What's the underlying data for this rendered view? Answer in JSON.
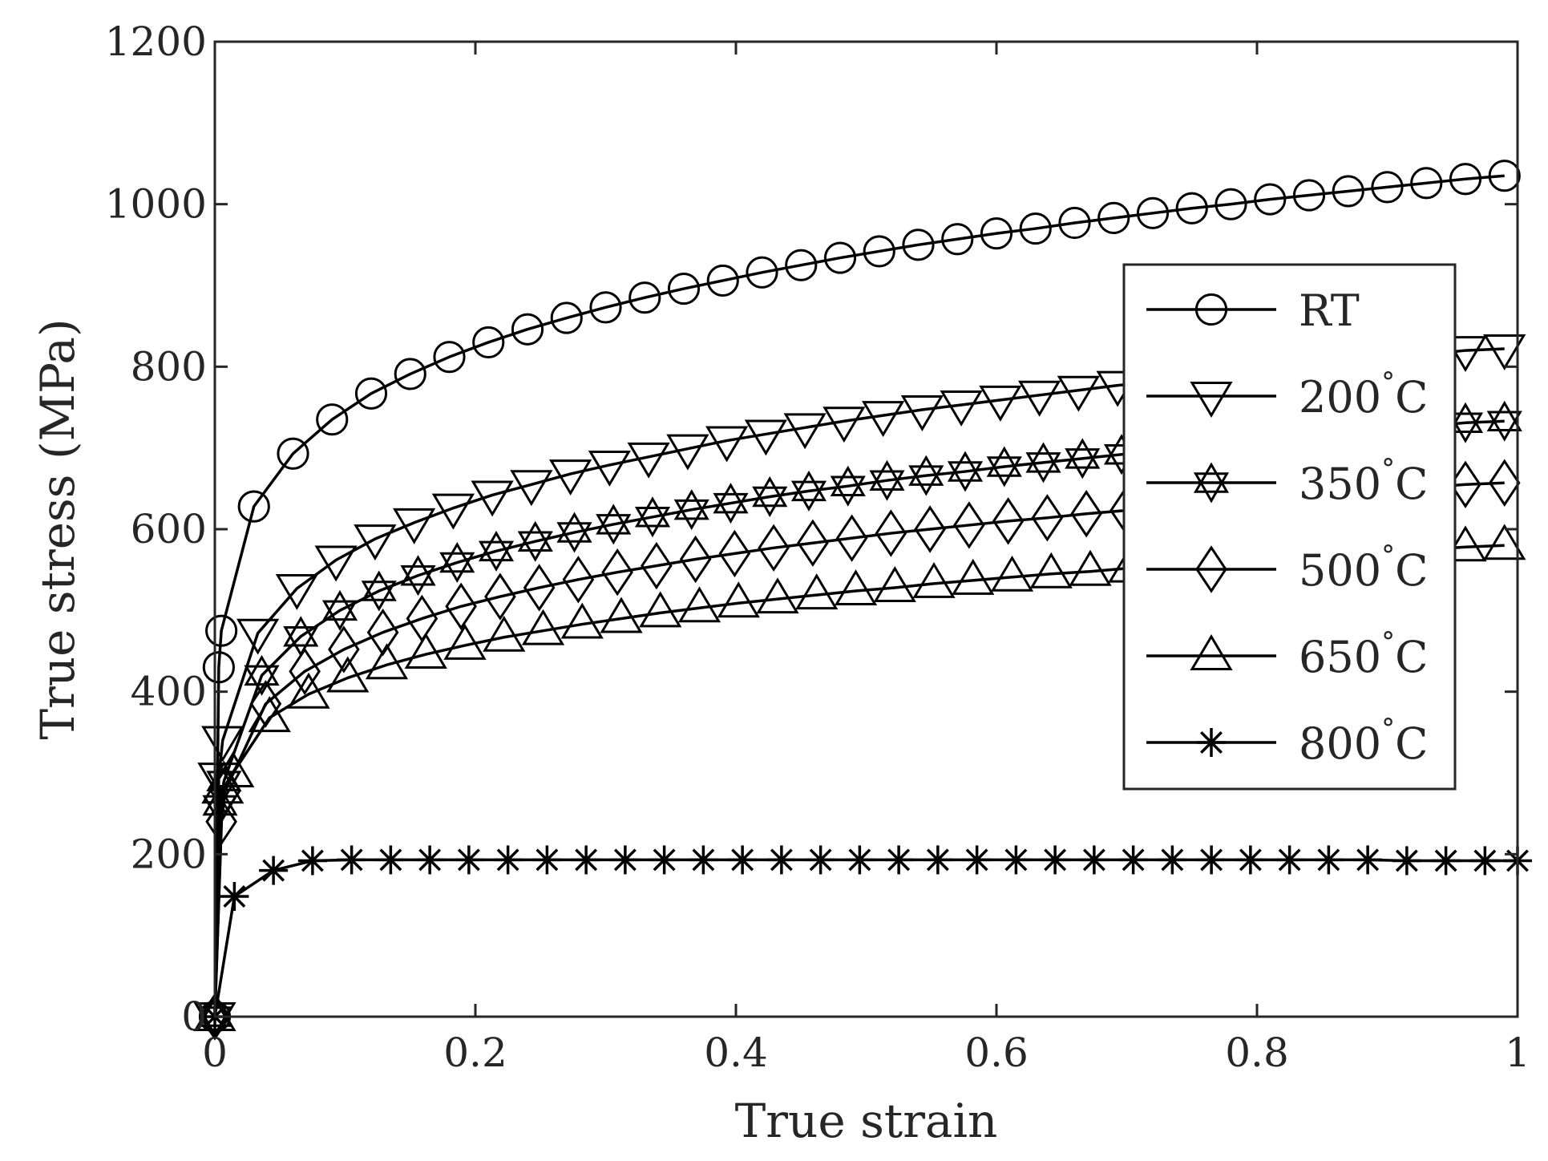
{
  "chart_data": {
    "type": "line",
    "title": "",
    "xlabel": "True strain",
    "ylabel": "True stress (MPa)",
    "xlim": [
      0,
      1
    ],
    "ylim": [
      0,
      1200
    ],
    "xticks": [
      0,
      0.2,
      0.4,
      0.6,
      0.8,
      1
    ],
    "xtick_labels": [
      "0",
      "0.2",
      "0.4",
      "0.6",
      "0.8",
      "1"
    ],
    "yticks": [
      0,
      200,
      400,
      600,
      800,
      1000,
      1200
    ],
    "ytick_labels": [
      "0",
      "200",
      "400",
      "600",
      "800",
      "1000",
      "1200"
    ],
    "grid": false,
    "legend_position": "right",
    "line_color": "#000000",
    "series": [
      {
        "name": "RT",
        "label_main": "RT",
        "label_super": "",
        "label_tail": "",
        "marker": "circle",
        "x": [
          0,
          0.003,
          0.005,
          0.03,
          0.06,
          0.09,
          0.12,
          0.15,
          0.18,
          0.21,
          0.24,
          0.27,
          0.3,
          0.33,
          0.36,
          0.39,
          0.42,
          0.45,
          0.48,
          0.51,
          0.54,
          0.57,
          0.6,
          0.63,
          0.66,
          0.69,
          0.72,
          0.75,
          0.78,
          0.81,
          0.84,
          0.87,
          0.9,
          0.93,
          0.96,
          0.99
        ],
        "y": [
          0,
          430,
          475,
          628,
          693,
          735,
          767,
          791,
          812,
          830,
          846,
          860,
          873,
          885,
          896,
          906,
          916,
          925,
          934,
          942,
          950,
          957,
          964,
          970,
          977,
          983,
          989,
          995,
          1000,
          1006,
          1011,
          1016,
          1021,
          1026,
          1031,
          1035
        ]
      },
      {
        "name": "200°C",
        "label_main": "200",
        "label_super": "°",
        "label_tail": "C",
        "marker": "triangle-down",
        "x": [
          0,
          0.003,
          0.006,
          0.033,
          0.063,
          0.093,
          0.123,
          0.153,
          0.183,
          0.213,
          0.243,
          0.273,
          0.303,
          0.333,
          0.363,
          0.393,
          0.423,
          0.453,
          0.483,
          0.513,
          0.543,
          0.573,
          0.603,
          0.633,
          0.663,
          0.693,
          0.96,
          0.99
        ],
        "y": [
          0,
          295,
          340,
          472,
          527,
          562,
          588,
          608,
          626,
          642,
          655,
          668,
          679,
          689,
          699,
          709,
          717,
          725,
          733,
          740,
          747,
          753,
          759,
          765,
          771,
          777,
          820,
          822
        ]
      },
      {
        "name": "350°C",
        "label_main": "350",
        "label_super": "°",
        "label_tail": "C",
        "marker": "hexagram",
        "x": [
          0,
          0.004,
          0.007,
          0.036,
          0.066,
          0.096,
          0.126,
          0.156,
          0.186,
          0.216,
          0.246,
          0.276,
          0.306,
          0.336,
          0.366,
          0.396,
          0.426,
          0.456,
          0.486,
          0.516,
          0.546,
          0.576,
          0.606,
          0.636,
          0.666,
          0.696,
          0.96,
          0.99
        ],
        "y": [
          0,
          260,
          290,
          420,
          468,
          500,
          524,
          543,
          559,
          573,
          585,
          596,
          606,
          615,
          624,
          632,
          640,
          647,
          653,
          660,
          666,
          671,
          677,
          682,
          687,
          692,
          731,
          733
        ]
      },
      {
        "name": "500°C",
        "label_main": "500",
        "label_super": "°",
        "label_tail": "C",
        "marker": "diamond",
        "x": [
          0,
          0.005,
          0.008,
          0.039,
          0.069,
          0.099,
          0.129,
          0.159,
          0.189,
          0.219,
          0.249,
          0.279,
          0.309,
          0.339,
          0.369,
          0.399,
          0.429,
          0.459,
          0.489,
          0.519,
          0.549,
          0.579,
          0.609,
          0.639,
          0.669,
          0.699,
          0.96,
          0.99
        ],
        "y": [
          0,
          240,
          278,
          385,
          425,
          452,
          473,
          490,
          505,
          517,
          528,
          538,
          547,
          555,
          563,
          570,
          577,
          583,
          589,
          595,
          600,
          605,
          610,
          614,
          619,
          623,
          655,
          657
        ]
      },
      {
        "name": "650°C",
        "label_main": "650",
        "label_super": "°",
        "label_tail": "C",
        "marker": "triangle-up",
        "x": [
          0,
          0.006,
          0.014,
          0.042,
          0.072,
          0.102,
          0.132,
          0.162,
          0.192,
          0.222,
          0.252,
          0.282,
          0.312,
          0.342,
          0.372,
          0.402,
          0.432,
          0.462,
          0.492,
          0.522,
          0.552,
          0.582,
          0.612,
          0.642,
          0.672,
          0.702,
          0.96,
          0.99
        ],
        "y": [
          0,
          280,
          300,
          368,
          397,
          417,
          433,
          446,
          457,
          467,
          475,
          483,
          490,
          497,
          503,
          509,
          514,
          519,
          524,
          528,
          533,
          537,
          541,
          545,
          548,
          552,
          578,
          580
        ]
      },
      {
        "name": "800°C",
        "label_main": "800",
        "label_super": "°",
        "label_tail": "C",
        "marker": "asterisk",
        "x": [
          0,
          0.015,
          0.045,
          0.075,
          0.105,
          0.135,
          0.165,
          0.195,
          0.225,
          0.255,
          0.285,
          0.315,
          0.345,
          0.375,
          0.405,
          0.435,
          0.465,
          0.495,
          0.525,
          0.555,
          0.585,
          0.615,
          0.645,
          0.675,
          0.705,
          0.735,
          0.765,
          0.795,
          0.825,
          0.855,
          0.885,
          0.915,
          0.945,
          0.975,
          1.0
        ],
        "y": [
          0,
          148,
          180,
          192,
          193,
          193,
          193,
          193,
          193,
          193,
          193,
          193,
          193,
          193,
          193,
          193,
          193,
          193,
          193,
          193,
          193,
          193,
          193,
          193,
          193,
          193,
          193,
          193,
          193,
          193,
          193,
          192,
          192,
          192,
          192
        ]
      }
    ]
  }
}
